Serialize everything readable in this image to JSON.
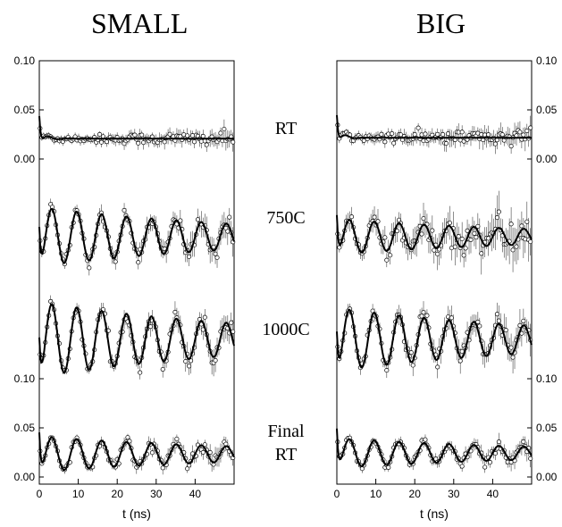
{
  "titles": {
    "left": "SMALL",
    "right": "BIG"
  },
  "conditions": [
    {
      "id": "rt",
      "lines": [
        "RT"
      ]
    },
    {
      "id": "c750",
      "lines": [
        "750C"
      ]
    },
    {
      "id": "c1000",
      "lines": [
        "1000C"
      ]
    },
    {
      "id": "finalrt",
      "lines": [
        "Final",
        "RT"
      ]
    }
  ],
  "chart_data": [
    {
      "type": "scatter",
      "title": "SMALL",
      "xlabel": "t (ns)",
      "ylabel": "",
      "xlim": [
        0,
        50
      ],
      "x_ticks": [
        "0",
        "10",
        "20",
        "30",
        "40"
      ],
      "y_tick_labels_top": [
        "0.10",
        "0.05",
        "0.00"
      ],
      "y_tick_labels_bottom": [
        "0.10",
        "0.05",
        "0.00"
      ],
      "series": [
        {
          "condition": "RT",
          "period_ns": 0,
          "amplitude": 0.0,
          "baseline": 0.027,
          "dip": 0.012,
          "noise": 0.004
        },
        {
          "condition": "750C",
          "period_ns": 6.4,
          "amplitude": 0.03,
          "baseline": 0.03,
          "dip": 0.0,
          "noise": 0.006
        },
        {
          "condition": "1000C",
          "period_ns": 6.4,
          "amplitude": 0.038,
          "baseline": 0.03,
          "dip": 0.0,
          "noise": 0.006
        },
        {
          "condition": "Final RT",
          "period_ns": 6.4,
          "amplitude": 0.018,
          "baseline": 0.026,
          "dip": 0.0,
          "noise": 0.004
        }
      ]
    },
    {
      "type": "scatter",
      "title": "BIG",
      "xlabel": "t (ns)",
      "ylabel": "",
      "xlim": [
        0,
        50
      ],
      "x_ticks": [
        "0",
        "10",
        "20",
        "30",
        "40"
      ],
      "y_tick_labels_top": [
        "0.10",
        "0.05",
        "0.00"
      ],
      "y_tick_labels_bottom": [
        "0.10",
        "0.05",
        "0.00"
      ],
      "series": [
        {
          "condition": "RT",
          "period_ns": 0,
          "amplitude": 0.0,
          "baseline": 0.028,
          "dip": 0.012,
          "noise": 0.005
        },
        {
          "condition": "750C",
          "period_ns": 6.4,
          "amplitude": 0.018,
          "baseline": 0.03,
          "dip": 0.0,
          "noise": 0.01
        },
        {
          "condition": "1000C",
          "period_ns": 6.4,
          "amplitude": 0.032,
          "baseline": 0.03,
          "dip": 0.0,
          "noise": 0.007
        },
        {
          "condition": "Final RT",
          "period_ns": 6.4,
          "amplitude": 0.015,
          "baseline": 0.027,
          "dip": 0.0,
          "noise": 0.004
        }
      ]
    }
  ]
}
